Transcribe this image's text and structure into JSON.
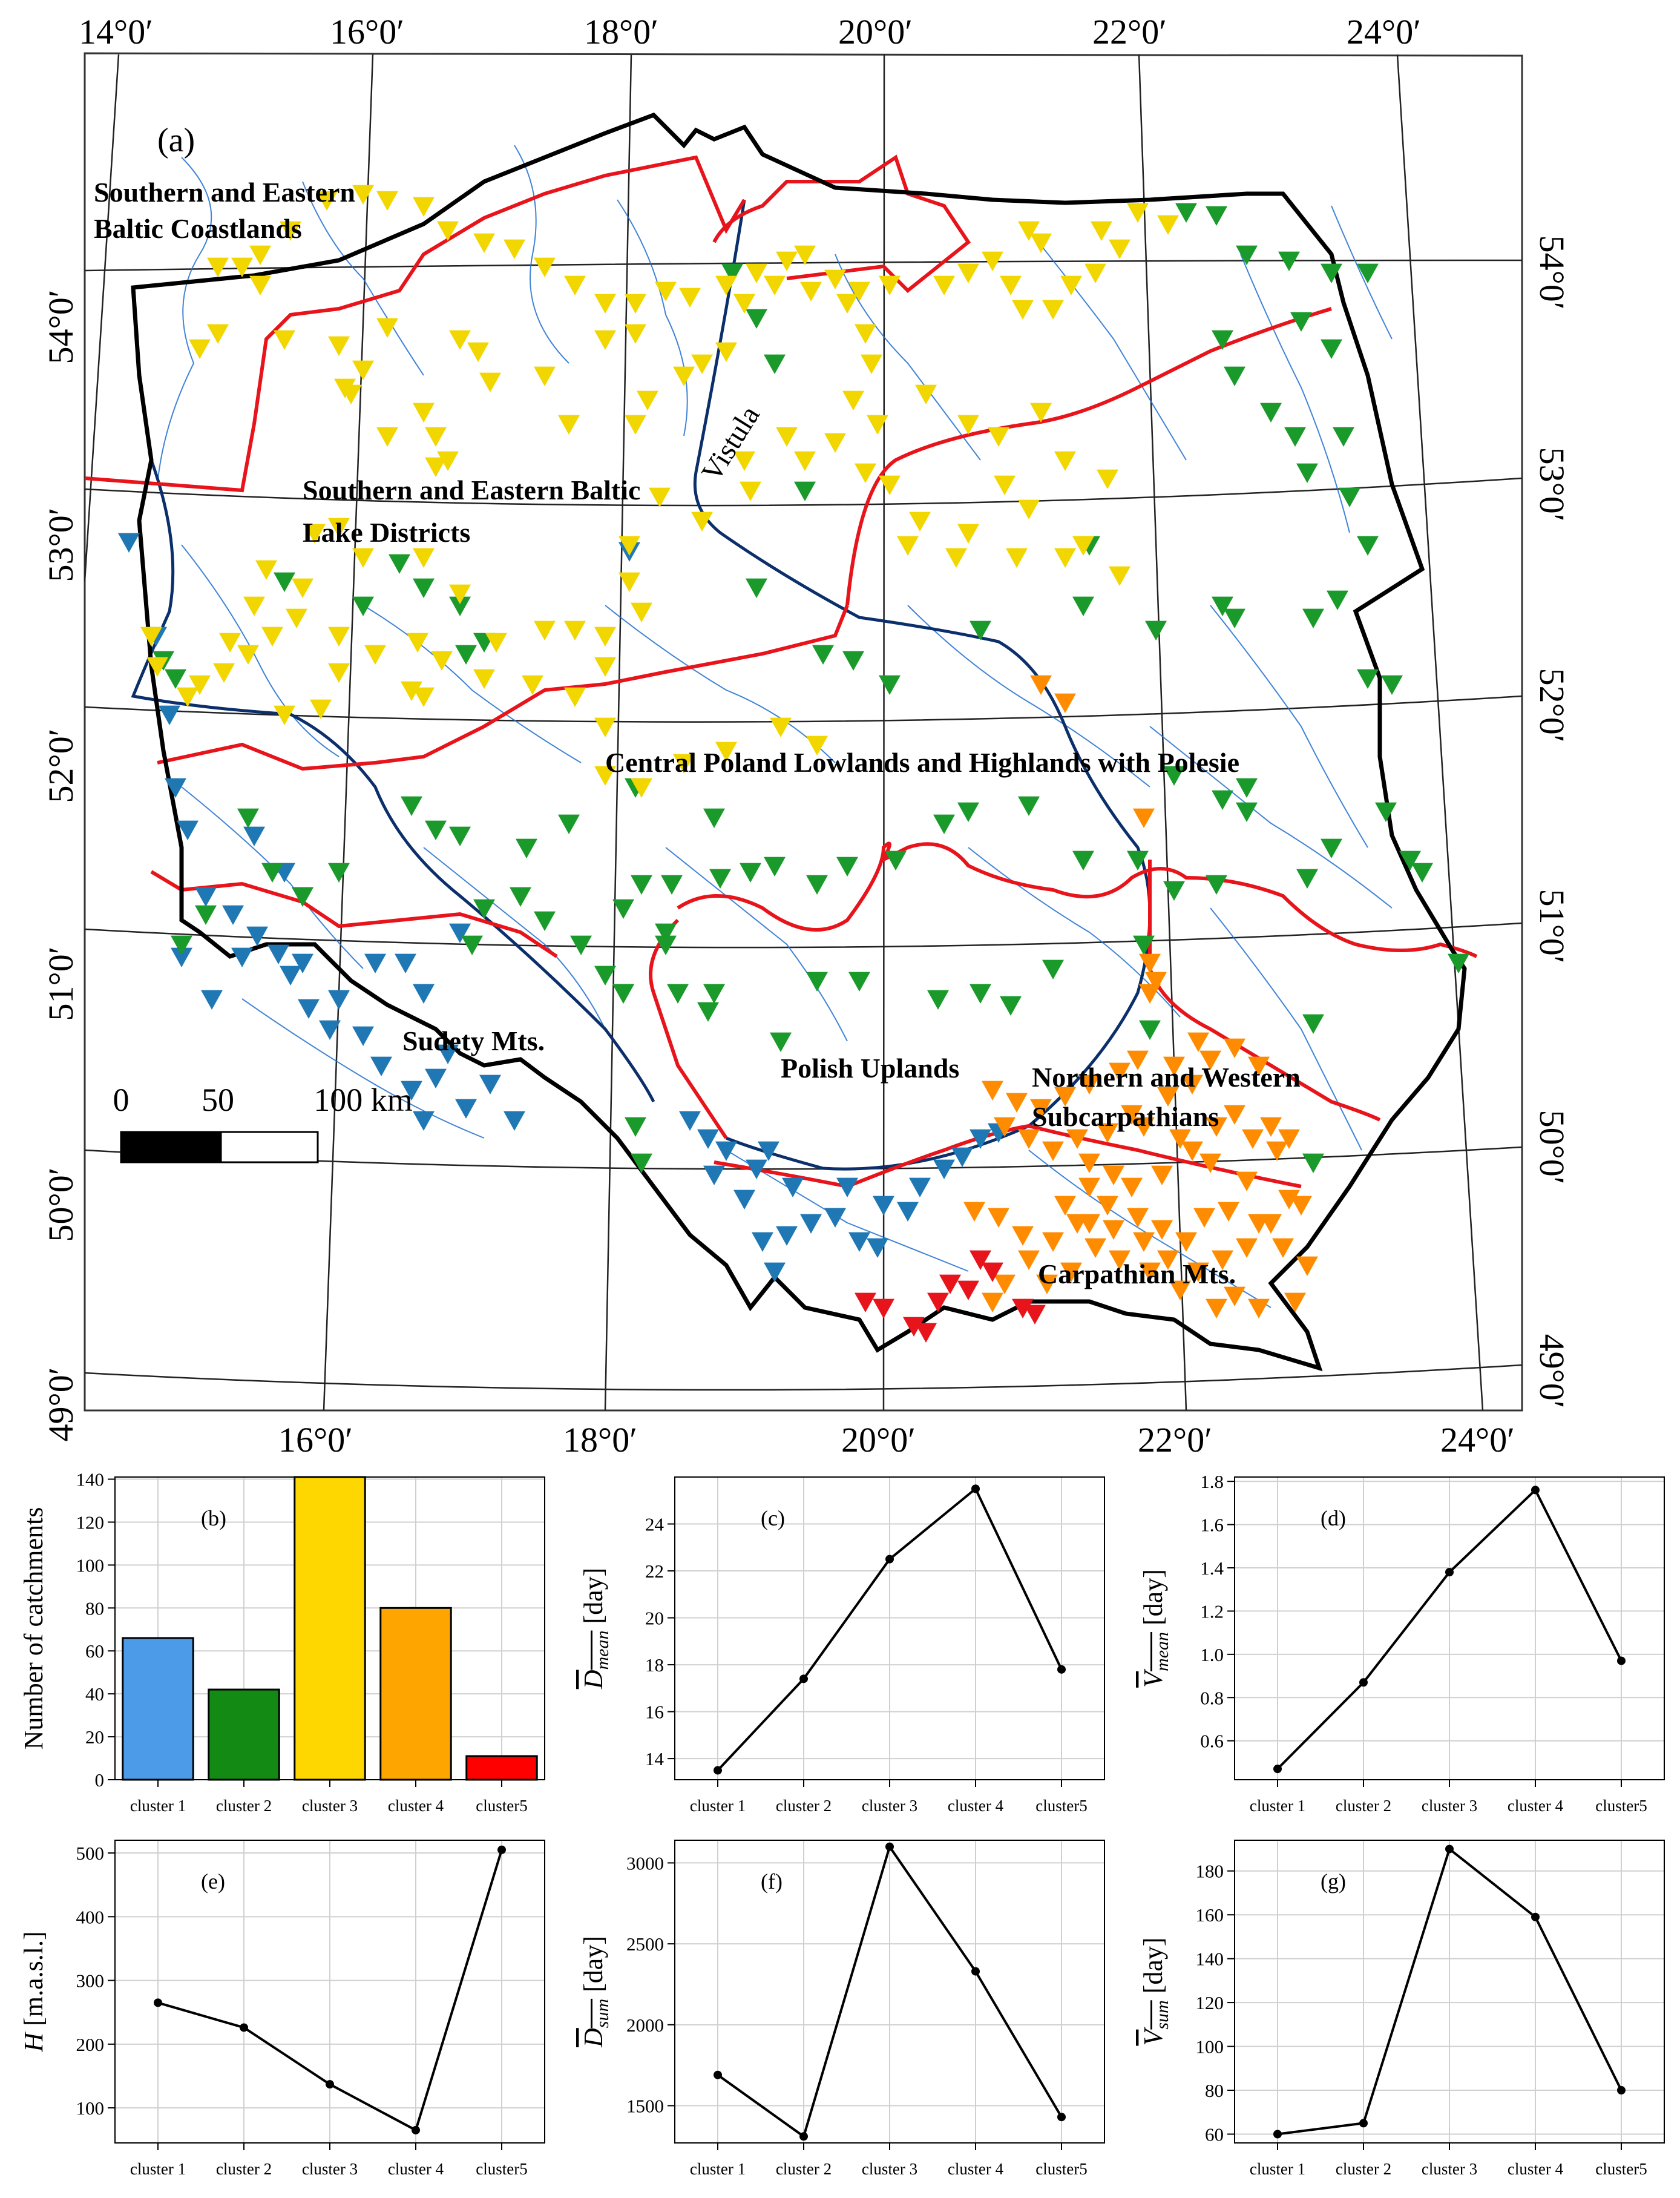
{
  "map": {
    "panel_label": "(a)",
    "lon_labels": [
      "14°0′",
      "16°0′",
      "18°0′",
      "20°0′",
      "22°0′",
      "24°0′"
    ],
    "lat_labels": [
      "49°0′",
      "50°0′",
      "51°0′",
      "52°0′",
      "53°0′",
      "54°0′"
    ],
    "regions": [
      "Southern and Eastern",
      "Baltic Coastlands",
      "Southern and Eastern Baltic",
      "Lake Districts",
      "Central Poland Lowlands and Highlands with Polesie",
      "Sudety Mts.",
      "Polish Uplands",
      "Northern and Western",
      "Subcarpathians",
      "Carpathian Mts."
    ],
    "river_label": "Vistula",
    "scale_labels": [
      "0",
      "50",
      "100 km"
    ],
    "colors": {
      "cluster1": "#1f78b4",
      "cluster2": "#1a9a2a",
      "cluster3": "#f2d600",
      "cluster4": "#ff8c00",
      "cluster5": "#e8141b",
      "region_border": "#e8141b",
      "river": "#1f5fbf",
      "main_river": "#0b2f6b"
    }
  },
  "chart_data": [
    {
      "panel": "(b)",
      "type": "bar",
      "categories": [
        "cluster 1",
        "cluster 2",
        "cluster 3",
        "cluster 4",
        "cluster5"
      ],
      "values": [
        66,
        42,
        141,
        80,
        11
      ],
      "colors": [
        "#4c9be8",
        "#138a13",
        "#ffd700",
        "#ffa500",
        "#ff0000"
      ],
      "ylabel": "Number of catchments",
      "ylim": [
        0,
        141
      ],
      "yticks": [
        0,
        20,
        40,
        60,
        80,
        100,
        120,
        140
      ],
      "grid": true
    },
    {
      "panel": "(c)",
      "type": "line",
      "categories": [
        "cluster 1",
        "cluster 2",
        "cluster 3",
        "cluster 4",
        "cluster5"
      ],
      "values": [
        13.5,
        17.4,
        22.5,
        25.5,
        17.8
      ],
      "ylabel_main": "D",
      "ylabel_sub": "mean",
      "ylabel_unit": " [day]",
      "ylim": [
        13.1,
        26.0
      ],
      "yticks": [
        14,
        16,
        18,
        20,
        22,
        24
      ],
      "grid": true
    },
    {
      "panel": "(d)",
      "type": "line",
      "categories": [
        "cluster 1",
        "cluster 2",
        "cluster 3",
        "cluster 4",
        "cluster5"
      ],
      "values": [
        0.47,
        0.87,
        1.38,
        1.76,
        0.97
      ],
      "ylabel_main": "V",
      "ylabel_sub": "mean",
      "ylabel_unit": " [day]",
      "ylim": [
        0.42,
        1.82
      ],
      "yticks": [
        0.6,
        0.8,
        1.0,
        1.2,
        1.4,
        1.6,
        1.8
      ],
      "tick_decimals": 1,
      "grid": true
    },
    {
      "panel": "(e)",
      "type": "line",
      "categories": [
        "cluster 1",
        "cluster 2",
        "cluster 3",
        "cluster 4",
        "cluster5"
      ],
      "values": [
        265,
        226,
        137,
        65,
        505
      ],
      "ylabel_main": "H",
      "ylabel_sub": "",
      "ylabel_unit": " [m.a.s.l.]",
      "ylim": [
        45,
        520
      ],
      "yticks": [
        100,
        200,
        300,
        400,
        500
      ],
      "grid": true
    },
    {
      "panel": "(f)",
      "type": "line",
      "categories": [
        "cluster 1",
        "cluster 2",
        "cluster 3",
        "cluster 4",
        "cluster5"
      ],
      "values": [
        1690,
        1310,
        3100,
        2330,
        1430
      ],
      "ylabel_main": "D",
      "ylabel_sub": "sum",
      "ylabel_unit": " [day]",
      "ylim": [
        1270,
        3140
      ],
      "yticks": [
        1500,
        2000,
        2500,
        3000
      ],
      "grid": true
    },
    {
      "panel": "(g)",
      "type": "line",
      "categories": [
        "cluster 1",
        "cluster 2",
        "cluster 3",
        "cluster 4",
        "cluster5"
      ],
      "values": [
        60,
        65,
        190,
        159,
        80
      ],
      "ylabel_main": "V",
      "ylabel_sub": "sum",
      "ylabel_unit": " [day]",
      "ylim": [
        56,
        194
      ],
      "yticks": [
        60,
        80,
        100,
        120,
        140,
        160,
        180
      ],
      "grid": true
    }
  ]
}
